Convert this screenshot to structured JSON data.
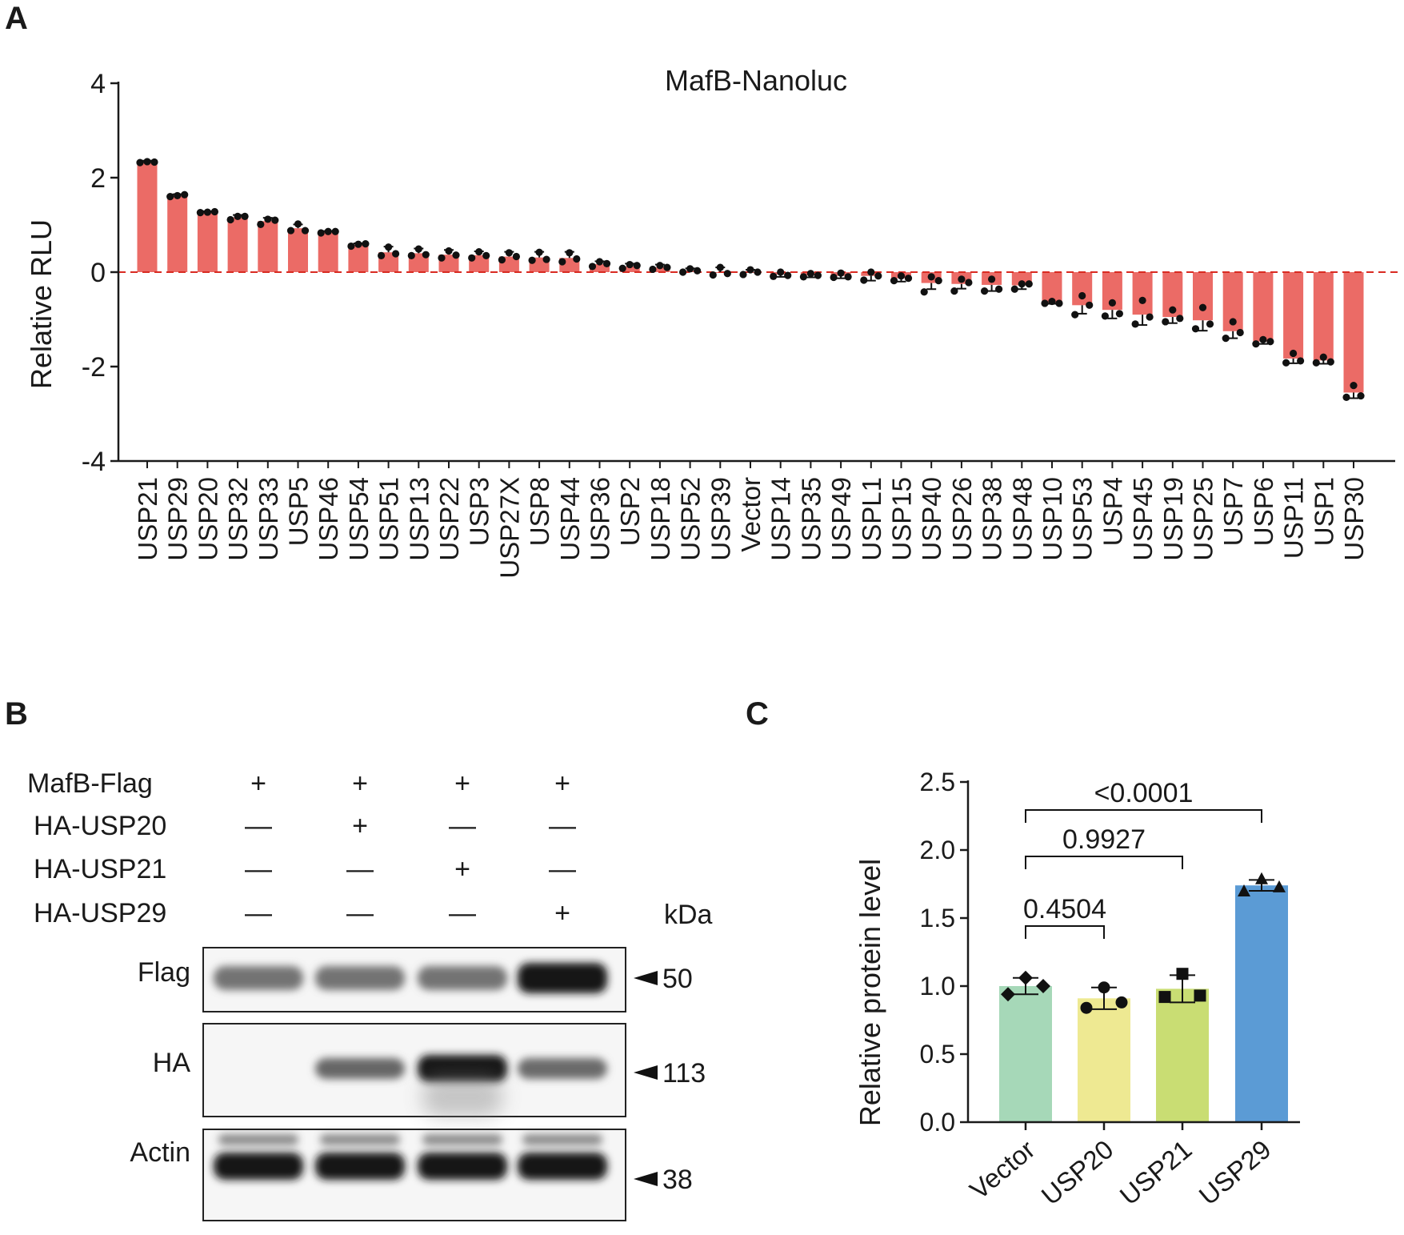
{
  "panels": {
    "A": "A",
    "B": "B",
    "C": "C"
  },
  "colors": {
    "bar_a": "#eb6b66",
    "zero_line": "#d92b22",
    "axis": "#1a1a1a",
    "bar_c": [
      "#a6d8b8",
      "#eee992",
      "#c9dd73",
      "#5b9bd5"
    ]
  },
  "chart_data": [
    {
      "type": "bar",
      "panel": "A",
      "title": "MafB-Nanoluc",
      "xlabel": "",
      "ylabel": "Relative RLU",
      "ylim": [
        -4,
        4
      ],
      "yticks": [
        4,
        2,
        0,
        -2,
        -4
      ],
      "reference_line": 0,
      "categories": [
        "USP21",
        "USP29",
        "USP20",
        "USP32",
        "USP33",
        "USP5",
        "USP46",
        "USP54",
        "USP51",
        "USP13",
        "USP22",
        "USP3",
        "USP27X",
        "USP8",
        "USP44",
        "USP36",
        "USP2",
        "USP18",
        "USP52",
        "USP39",
        "Vector",
        "USP14",
        "USP35",
        "USP49",
        "USPL1",
        "USP15",
        "USP40",
        "USP26",
        "USP38",
        "USP48",
        "USP10",
        "USP53",
        "USP4",
        "USP45",
        "USP19",
        "USP25",
        "USP7",
        "USP6",
        "USP11",
        "USP1",
        "USP30"
      ],
      "values": [
        2.33,
        1.62,
        1.27,
        1.16,
        1.08,
        0.93,
        0.85,
        0.58,
        0.42,
        0.4,
        0.37,
        0.36,
        0.33,
        0.31,
        0.3,
        0.17,
        0.12,
        0.1,
        0.03,
        0.0,
        0.0,
        -0.05,
        -0.07,
        -0.08,
        -0.08,
        -0.13,
        -0.23,
        -0.25,
        -0.27,
        -0.28,
        -0.65,
        -0.7,
        -0.8,
        -0.9,
        -0.95,
        -1.02,
        -1.25,
        -1.47,
        -1.83,
        -1.87,
        -2.55
      ],
      "errors": [
        0.03,
        0.03,
        0.02,
        0.05,
        0.07,
        0.08,
        0.02,
        0.03,
        0.12,
        0.1,
        0.1,
        0.08,
        0.1,
        0.12,
        0.13,
        0.06,
        0.06,
        0.06,
        0.05,
        0.1,
        0.05,
        0.05,
        0.04,
        0.05,
        0.1,
        0.07,
        0.13,
        0.1,
        0.13,
        0.08,
        0.02,
        0.18,
        0.18,
        0.22,
        0.13,
        0.22,
        0.15,
        0.05,
        0.1,
        0.07,
        0.12
      ],
      "points": [
        [
          2.32,
          2.34,
          2.33
        ],
        [
          1.6,
          1.62,
          1.64
        ],
        [
          1.26,
          1.27,
          1.28
        ],
        [
          1.11,
          1.18,
          1.18
        ],
        [
          1.01,
          1.12,
          1.1
        ],
        [
          0.88,
          1.02,
          0.88
        ],
        [
          0.83,
          0.86,
          0.86
        ],
        [
          0.55,
          0.59,
          0.6
        ],
        [
          0.35,
          0.53,
          0.39
        ],
        [
          0.35,
          0.49,
          0.37
        ],
        [
          0.3,
          0.45,
          0.36
        ],
        [
          0.3,
          0.43,
          0.35
        ],
        [
          0.26,
          0.41,
          0.33
        ],
        [
          0.25,
          0.42,
          0.27
        ],
        [
          0.22,
          0.41,
          0.28
        ],
        [
          0.12,
          0.22,
          0.18
        ],
        [
          0.08,
          0.16,
          0.14
        ],
        [
          0.06,
          0.14,
          0.1
        ],
        [
          0.0,
          0.07,
          0.03
        ],
        [
          -0.06,
          0.1,
          -0.03
        ],
        [
          -0.05,
          0.05,
          0.0
        ],
        [
          -0.09,
          0.0,
          -0.07
        ],
        [
          -0.1,
          -0.03,
          -0.07
        ],
        [
          -0.11,
          -0.02,
          -0.1
        ],
        [
          -0.17,
          0.0,
          -0.08
        ],
        [
          -0.18,
          -0.08,
          -0.13
        ],
        [
          -0.42,
          -0.1,
          -0.18
        ],
        [
          -0.4,
          -0.15,
          -0.22
        ],
        [
          -0.4,
          -0.15,
          -0.36
        ],
        [
          -0.36,
          -0.25,
          -0.25
        ],
        [
          -0.66,
          -0.62,
          -0.66
        ],
        [
          -0.9,
          -0.5,
          -0.7
        ],
        [
          -0.93,
          -0.65,
          -0.88
        ],
        [
          -1.1,
          -0.6,
          -0.95
        ],
        [
          -1.05,
          -0.8,
          -0.98
        ],
        [
          -1.2,
          -0.75,
          -1.1
        ],
        [
          -1.4,
          -1.05,
          -1.28
        ],
        [
          -1.52,
          -1.43,
          -1.47
        ],
        [
          -1.92,
          -1.72,
          -1.88
        ],
        [
          -1.92,
          -1.8,
          -1.9
        ],
        [
          -2.65,
          -2.4,
          -2.62
        ]
      ]
    },
    {
      "type": "bar",
      "panel": "C",
      "title": "",
      "xlabel": "",
      "ylabel": "Relative protein level",
      "ylim": [
        0,
        2.5
      ],
      "yticks": [
        "0.0",
        "0.5",
        "1.0",
        "1.5",
        "2.0",
        "2.5"
      ],
      "categories": [
        "Vector",
        "USP20",
        "USP21",
        "USP29"
      ],
      "values": [
        1.0,
        0.91,
        0.98,
        1.74
      ],
      "errors": [
        0.06,
        0.08,
        0.1,
        0.04
      ],
      "markers": [
        "diamond",
        "circle",
        "square",
        "triangle"
      ],
      "points": [
        [
          0.94,
          1.06,
          1.0
        ],
        [
          0.84,
          0.99,
          0.88
        ],
        [
          0.92,
          1.09,
          0.93
        ],
        [
          1.7,
          1.79,
          1.73
        ]
      ],
      "comparisons": [
        {
          "from": "Vector",
          "to": "USP20",
          "label": "0.4504"
        },
        {
          "from": "Vector",
          "to": "USP21",
          "label": "0.9927"
        },
        {
          "from": "Vector",
          "to": "USP29",
          "label": "<0.0001"
        }
      ]
    }
  ],
  "blot": {
    "conditions": [
      {
        "label": "MafB-Flag",
        "signs": [
          "+",
          "+",
          "+",
          "+"
        ]
      },
      {
        "label": "HA-USP20",
        "signs": [
          "—",
          "+",
          "—",
          "—"
        ]
      },
      {
        "label": "HA-USP21",
        "signs": [
          "—",
          "—",
          "+",
          "—"
        ]
      },
      {
        "label": "HA-USP29",
        "signs": [
          "—",
          "—",
          "—",
          "+"
        ]
      }
    ],
    "kda_label": "kDa",
    "bands": [
      {
        "label": "Flag",
        "marker": "50",
        "intensity": [
          0.55,
          0.55,
          0.55,
          0.92
        ]
      },
      {
        "label": "HA",
        "marker": "113",
        "intensity": [
          0.0,
          0.6,
          0.9,
          0.58
        ]
      },
      {
        "label": "Actin",
        "marker": "38",
        "intensity": [
          0.9,
          0.9,
          0.92,
          0.92
        ]
      }
    ]
  }
}
